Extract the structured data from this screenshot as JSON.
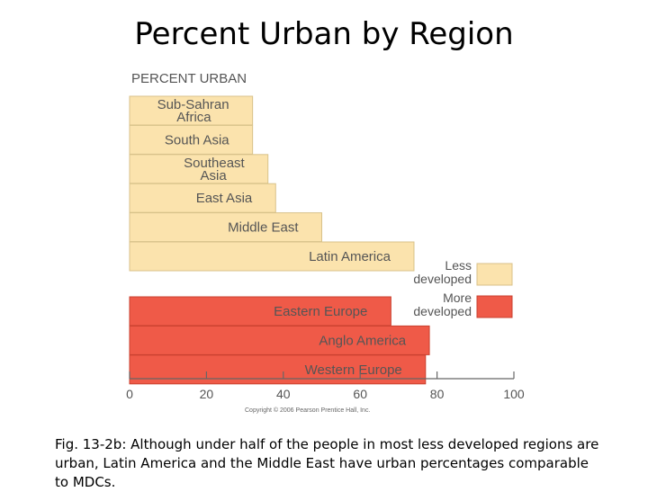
{
  "slide": {
    "title": "Percent Urban by Region",
    "caption": "Fig. 13-2b: Although under half of the people in most less developed regions are urban, Latin America and the Middle East have urban percentages comparable to MDCs."
  },
  "chart_data": {
    "type": "bar",
    "orientation": "horizontal",
    "title": "PERCENT URBAN",
    "categories": [
      "Sub-Sahran Africa",
      "South Asia",
      "Southeast Asia",
      "East Asia",
      "Middle East",
      "Latin America",
      "Eastern Europe",
      "Anglo America",
      "Western Europe"
    ],
    "values": [
      32,
      32,
      36,
      38,
      50,
      74,
      68,
      78,
      77
    ],
    "groups": [
      "less",
      "less",
      "less",
      "less",
      "less",
      "less",
      "more",
      "more",
      "more"
    ],
    "xlim": [
      0,
      100
    ],
    "xticks": [
      0,
      20,
      40,
      60,
      80,
      100
    ],
    "grid": false,
    "legend": {
      "position": "right",
      "entries": [
        {
          "key": "less",
          "label": "Less developed",
          "color": "#fbe3ad"
        },
        {
          "key": "more",
          "label": "More developed",
          "color": "#ef5a48"
        }
      ]
    },
    "copyright": "Copyright © 2006 Pearson Prentice Hall, Inc."
  },
  "colors": {
    "less_fill": "#fbe3ad",
    "more_fill": "#ef5a48",
    "bar_border": "#ffffff",
    "axis": "#666666",
    "text": "#555555"
  }
}
